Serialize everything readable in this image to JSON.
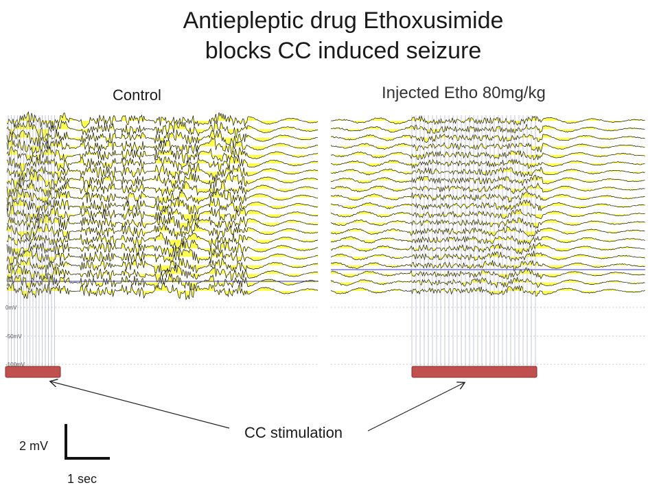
{
  "title_line1": "Antiepleptic drug Ethoxusimide",
  "title_line2": "blocks CC induced seizure",
  "panels": {
    "control": {
      "label": "Control"
    },
    "etho": {
      "label": "Injected Etho 80mg/kg"
    }
  },
  "voltage_axis": {
    "ticks": [
      "0mV",
      "-50mV",
      "-100mV"
    ]
  },
  "annotation": {
    "text": "CC stimulation"
  },
  "scale_bar": {
    "vertical_label": "2 mV",
    "horizontal_label": "1 sec"
  },
  "colors": {
    "trace": "#111111",
    "fill": "#ffff33",
    "stim_bar": "#c0504d",
    "blue_line": "#3333cc"
  },
  "chart_data": {
    "type": "line",
    "title": "Antiepleptic drug Ethoxusimide blocks CC induced seizure",
    "series": [
      {
        "name": "Control"
      },
      {
        "name": "Injected Etho 80mg/kg"
      }
    ]
  }
}
